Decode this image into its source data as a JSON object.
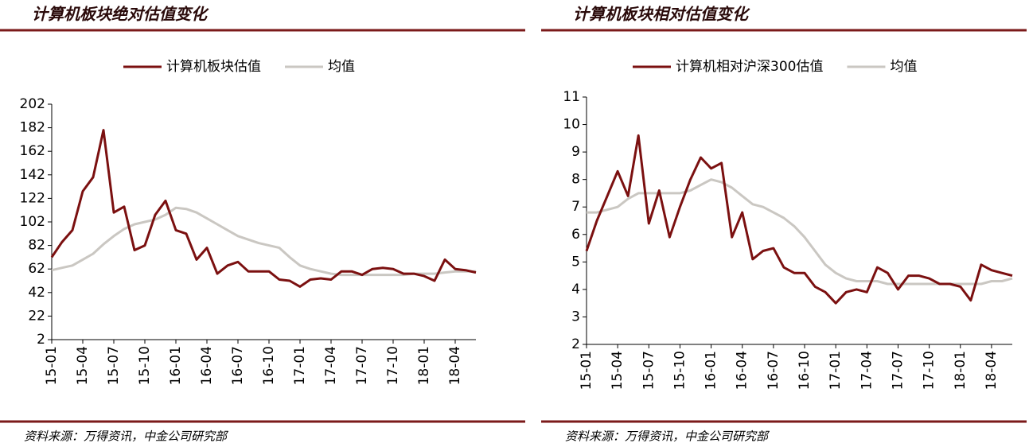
{
  "chart_data": [
    {
      "type": "line",
      "title": "计算机板块绝对估值变化",
      "source": "资料来源：万得资讯，中金公司研究部",
      "x": [
        "15-01",
        "15-02",
        "15-03",
        "15-04",
        "15-05",
        "15-06",
        "15-07",
        "15-08",
        "15-09",
        "15-10",
        "15-11",
        "15-12",
        "16-01",
        "16-02",
        "16-03",
        "16-04",
        "16-05",
        "16-06",
        "16-07",
        "16-08",
        "16-09",
        "16-10",
        "16-11",
        "16-12",
        "17-01",
        "17-02",
        "17-03",
        "17-04",
        "17-05",
        "17-06",
        "17-07",
        "17-08",
        "17-09",
        "17-10",
        "17-11",
        "17-12",
        "18-01",
        "18-02",
        "18-03",
        "18-04",
        "18-05",
        "18-06"
      ],
      "xticks": [
        "15-01",
        "15-04",
        "15-07",
        "15-10",
        "16-01",
        "16-04",
        "16-07",
        "16-10",
        "17-01",
        "17-04",
        "17-07",
        "17-10",
        "18-01",
        "18-04"
      ],
      "series": [
        {
          "name": "计算机板块估值",
          "color": "#7b1010",
          "values": [
            72,
            85,
            95,
            128,
            140,
            180,
            110,
            115,
            78,
            82,
            108,
            120,
            95,
            92,
            70,
            80,
            58,
            65,
            68,
            60,
            60,
            60,
            53,
            52,
            47,
            53,
            54,
            53,
            60,
            60,
            57,
            62,
            63,
            62,
            58,
            58,
            56,
            52,
            70,
            62,
            61,
            59
          ]
        },
        {
          "name": "均值",
          "color": "#cac7c2",
          "values": [
            61,
            63,
            65,
            70,
            75,
            83,
            90,
            96,
            100,
            102,
            104,
            108,
            114,
            113,
            110,
            105,
            100,
            95,
            90,
            87,
            84,
            82,
            80,
            72,
            65,
            62,
            60,
            58,
            57,
            57,
            57,
            57,
            57,
            57,
            57,
            58,
            58,
            58,
            59,
            60,
            60,
            60
          ]
        }
      ],
      "ylim": [
        2,
        202
      ],
      "yticks": [
        2,
        22,
        42,
        62,
        82,
        102,
        122,
        142,
        162,
        182,
        202
      ]
    },
    {
      "type": "line",
      "title": "计算机板块相对估值变化",
      "source": "资料来源：万得资讯，中金公司研究部",
      "x": [
        "15-01",
        "15-02",
        "15-03",
        "15-04",
        "15-05",
        "15-06",
        "15-07",
        "15-08",
        "15-09",
        "15-10",
        "15-11",
        "15-12",
        "16-01",
        "16-02",
        "16-03",
        "16-04",
        "16-05",
        "16-06",
        "16-07",
        "16-08",
        "16-09",
        "16-10",
        "16-11",
        "16-12",
        "17-01",
        "17-02",
        "17-03",
        "17-04",
        "17-05",
        "17-06",
        "17-07",
        "17-08",
        "17-09",
        "17-10",
        "17-11",
        "17-12",
        "18-01",
        "18-02",
        "18-03",
        "18-04",
        "18-05",
        "18-06"
      ],
      "xticks": [
        "15-01",
        "15-04",
        "15-07",
        "15-10",
        "16-01",
        "16-04",
        "16-07",
        "16-10",
        "17-01",
        "17-04",
        "17-07",
        "17-10",
        "18-01",
        "18-04"
      ],
      "series": [
        {
          "name": "计算机相对沪深300估值",
          "color": "#7b1010",
          "values": [
            5.4,
            6.5,
            7.4,
            8.3,
            7.4,
            9.6,
            6.4,
            7.6,
            5.9,
            7.0,
            8.0,
            8.8,
            8.4,
            8.6,
            5.9,
            6.8,
            5.1,
            5.4,
            5.5,
            4.8,
            4.6,
            4.6,
            4.1,
            3.9,
            3.5,
            3.9,
            4.0,
            3.9,
            4.8,
            4.6,
            4.0,
            4.5,
            4.5,
            4.4,
            4.2,
            4.2,
            4.1,
            3.6,
            4.9,
            4.7,
            4.6,
            4.5
          ]
        },
        {
          "name": "均值",
          "color": "#cac7c2",
          "values": [
            6.8,
            6.8,
            6.9,
            7.0,
            7.3,
            7.5,
            7.5,
            7.5,
            7.5,
            7.5,
            7.6,
            7.8,
            8.0,
            7.9,
            7.7,
            7.4,
            7.1,
            7.0,
            6.8,
            6.6,
            6.3,
            5.9,
            5.4,
            4.9,
            4.6,
            4.4,
            4.3,
            4.3,
            4.3,
            4.2,
            4.2,
            4.2,
            4.2,
            4.2,
            4.2,
            4.2,
            4.2,
            4.2,
            4.2,
            4.3,
            4.3,
            4.4
          ]
        }
      ],
      "ylim": [
        2,
        11
      ],
      "yticks": [
        2,
        3,
        4,
        5,
        6,
        7,
        8,
        9,
        10,
        11
      ]
    }
  ]
}
